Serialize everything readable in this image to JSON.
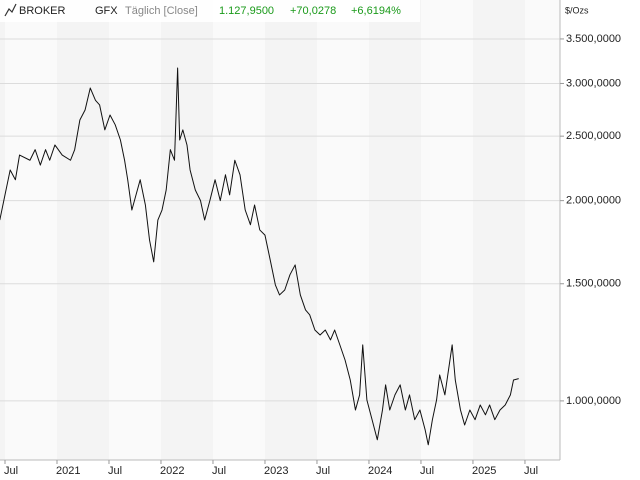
{
  "header": {
    "brand": "BROKER",
    "symbol": "GFX",
    "mode": "Täglich [Close]",
    "last": "1.127,9500",
    "change": "+70,0278",
    "change_pct": "+6,6194%"
  },
  "chart_data": {
    "type": "line",
    "y_label": "$/Ozs",
    "color": "#111111",
    "log_scale": true,
    "grid": true,
    "xlim": [
      2020.452,
      2025.837
    ],
    "ylim": [
      815,
      4005
    ],
    "xticks": [
      {
        "value": 2020.5,
        "label": "Jul"
      },
      {
        "value": 2021,
        "label": "2021"
      },
      {
        "value": 2021.5,
        "label": "Jul"
      },
      {
        "value": 2022,
        "label": "2022"
      },
      {
        "value": 2022.5,
        "label": "Jul"
      },
      {
        "value": 2023,
        "label": "2023"
      },
      {
        "value": 2023.5,
        "label": "Jul"
      },
      {
        "value": 2024,
        "label": "2024"
      },
      {
        "value": 2024.5,
        "label": "Jul"
      },
      {
        "value": 2025,
        "label": "2025"
      },
      {
        "value": 2025.5,
        "label": "Jul"
      }
    ],
    "yticks": [
      {
        "value": 1000,
        "label": "1.000,0000"
      },
      {
        "value": 1500,
        "label": "1.500,0000"
      },
      {
        "value": 2000,
        "label": "2.000,0000"
      },
      {
        "value": 2500,
        "label": "2.500,0000"
      },
      {
        "value": 3000,
        "label": "3.000,0000"
      },
      {
        "value": 3500,
        "label": "3.500,0000"
      }
    ],
    "x": [
      2020.45,
      2020.5,
      2020.55,
      2020.6,
      2020.64,
      2020.74,
      2020.79,
      2020.84,
      2020.89,
      2020.93,
      2020.98,
      2021.05,
      2021.13,
      2021.17,
      2021.22,
      2021.27,
      2021.32,
      2021.37,
      2021.41,
      2021.46,
      2021.51,
      2021.56,
      2021.61,
      2021.65,
      2021.68,
      2021.72,
      2021.76,
      2021.8,
      2021.85,
      2021.89,
      2021.93,
      2021.97,
      2022.01,
      2022.05,
      2022.09,
      2022.13,
      2022.16,
      2022.18,
      2022.21,
      2022.25,
      2022.28,
      2022.33,
      2022.38,
      2022.42,
      2022.47,
      2022.52,
      2022.57,
      2022.62,
      2022.66,
      2022.71,
      2022.76,
      2022.81,
      2022.86,
      2022.9,
      2022.95,
      2023.0,
      2023.05,
      2023.1,
      2023.14,
      2023.19,
      2023.24,
      2023.29,
      2023.34,
      2023.39,
      2023.43,
      2023.48,
      2023.53,
      2023.58,
      2023.63,
      2023.67,
      2023.72,
      2023.77,
      2023.82,
      2023.87,
      2023.91,
      2023.94,
      2023.98,
      2024.03,
      2024.08,
      2024.13,
      2024.16,
      2024.2,
      2024.25,
      2024.3,
      2024.35,
      2024.39,
      2024.44,
      2024.49,
      2024.54,
      2024.57,
      2024.61,
      2024.65,
      2024.68,
      2024.73,
      2024.8,
      2024.83,
      2024.88,
      2024.92,
      2024.97,
      2025.02,
      2025.07,
      2025.12,
      2025.16,
      2025.21,
      2025.26,
      2025.31,
      2025.36,
      2025.39,
      2025.44
    ],
    "values": [
      1870,
      2040,
      2224,
      2150,
      2342,
      2300,
      2386,
      2262,
      2386,
      2300,
      2425,
      2342,
      2300,
      2386,
      2644,
      2737,
      2953,
      2830,
      2785,
      2555,
      2690,
      2600,
      2467,
      2300,
      2150,
      1936,
      2040,
      2150,
      1970,
      1745,
      1618,
      1870,
      1936,
      2075,
      2386,
      2300,
      3165,
      2467,
      2555,
      2425,
      2224,
      2075,
      2000,
      1870,
      2000,
      2150,
      2000,
      2187,
      2040,
      2300,
      2187,
      1936,
      1840,
      1970,
      1807,
      1775,
      1630,
      1494,
      1443,
      1468,
      1547,
      1601,
      1443,
      1370,
      1347,
      1278,
      1256,
      1278,
      1235,
      1278,
      1214,
      1152,
      1075,
      969,
      1021,
      1214,
      1003,
      937,
      874,
      969,
      1057,
      969,
      1021,
      1057,
      969,
      1021,
      937,
      969,
      905,
      859,
      937,
      1003,
      1094,
      1021,
      1214,
      1075,
      969,
      920,
      969,
      937,
      986,
      953,
      986,
      937,
      969,
      986,
      1021,
      1075,
      1080
    ]
  }
}
